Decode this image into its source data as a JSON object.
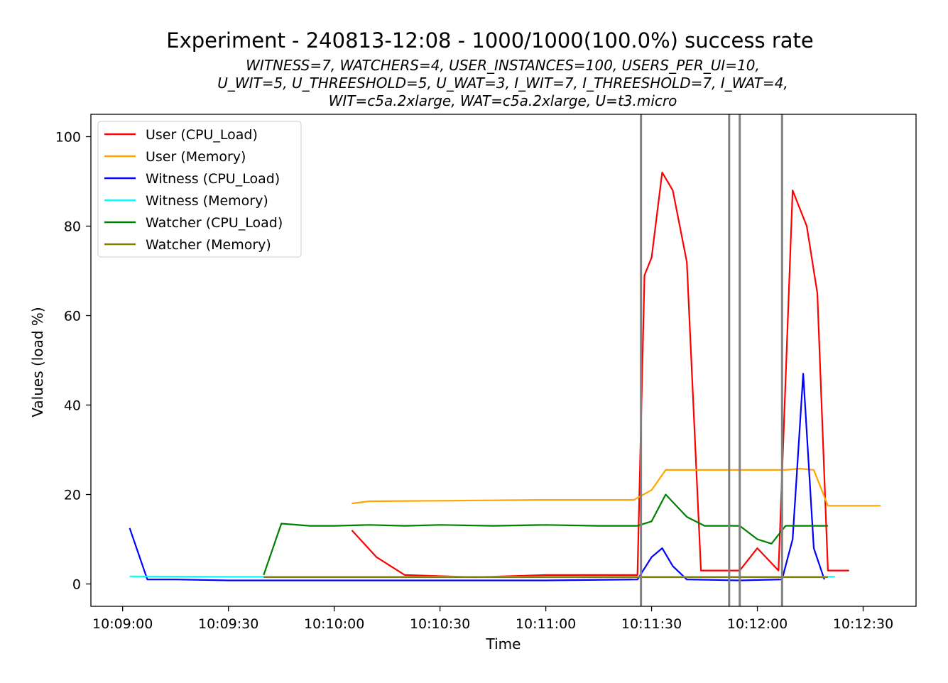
{
  "chart_data": {
    "type": "line",
    "title": "Experiment - 240813-12:08 - 1000/1000(100.0%) success rate",
    "subtitle_lines": [
      "WITNESS=7, WATCHERS=4, USER_INSTANCES=100, USERS_PER_UI=10,",
      "U_WIT=5, U_THREESHOLD=5, U_WAT=3, I_WIT=7, I_THREESHOLD=7, I_WAT=4,",
      "WIT=c5a.2xlarge, WAT=c5a.2xlarge, U=t3.micro"
    ],
    "xlabel": "Time",
    "ylabel": "Values (load %)",
    "x_ticks": [
      "10:09:00",
      "10:09:30",
      "10:10:00",
      "10:10:30",
      "10:11:00",
      "10:11:30",
      "10:12:00",
      "10:12:30"
    ],
    "y_ticks": [
      "0",
      "20",
      "40",
      "60",
      "80",
      "100"
    ],
    "xlim": [
      "10:08:51",
      "10:12:45"
    ],
    "ylim": [
      -5,
      105
    ],
    "grid": false,
    "legend_position": "top-left",
    "event_markers": [
      "10:11:27",
      "10:11:52",
      "10:11:55",
      "10:12:07"
    ],
    "series": [
      {
        "name": "User (CPU_Load)",
        "color": "#ff0000",
        "points": [
          [
            "10:10:05",
            12
          ],
          [
            "10:10:12",
            6
          ],
          [
            "10:10:20",
            2
          ],
          [
            "10:10:40",
            1.5
          ],
          [
            "10:11:00",
            2
          ],
          [
            "10:11:20",
            2
          ],
          [
            "10:11:26",
            2
          ],
          [
            "10:11:28",
            69
          ],
          [
            "10:11:30",
            73
          ],
          [
            "10:11:33",
            92
          ],
          [
            "10:11:36",
            88
          ],
          [
            "10:11:40",
            72
          ],
          [
            "10:11:44",
            3
          ],
          [
            "10:11:55",
            3
          ],
          [
            "10:12:00",
            8
          ],
          [
            "10:12:06",
            3
          ],
          [
            "10:12:10",
            88
          ],
          [
            "10:12:14",
            80
          ],
          [
            "10:12:17",
            65
          ],
          [
            "10:12:20",
            3
          ],
          [
            "10:12:26",
            3
          ]
        ]
      },
      {
        "name": "User (Memory)",
        "color": "#ffa500",
        "points": [
          [
            "10:10:05",
            18
          ],
          [
            "10:10:10",
            18.5
          ],
          [
            "10:10:30",
            18.6
          ],
          [
            "10:11:00",
            18.8
          ],
          [
            "10:11:25",
            18.8
          ],
          [
            "10:11:30",
            21
          ],
          [
            "10:11:34",
            25.5
          ],
          [
            "10:11:50",
            25.5
          ],
          [
            "10:12:08",
            25.5
          ],
          [
            "10:12:12",
            25.8
          ],
          [
            "10:12:16",
            25.5
          ],
          [
            "10:12:20",
            17.5
          ],
          [
            "10:12:35",
            17.5
          ]
        ]
      },
      {
        "name": "Witness (CPU_Load)",
        "color": "#0000ff",
        "points": [
          [
            "10:09:02",
            12.5
          ],
          [
            "10:09:07",
            1
          ],
          [
            "10:09:15",
            1
          ],
          [
            "10:09:30",
            0.8
          ],
          [
            "10:10:00",
            0.8
          ],
          [
            "10:10:30",
            0.8
          ],
          [
            "10:11:00",
            0.8
          ],
          [
            "10:11:26",
            1
          ],
          [
            "10:11:30",
            6
          ],
          [
            "10:11:33",
            8
          ],
          [
            "10:11:36",
            4
          ],
          [
            "10:11:40",
            1
          ],
          [
            "10:11:55",
            0.8
          ],
          [
            "10:12:07",
            1
          ],
          [
            "10:12:10",
            10
          ],
          [
            "10:12:13",
            47
          ],
          [
            "10:12:16",
            8
          ],
          [
            "10:12:19",
            1
          ]
        ]
      },
      {
        "name": "Witness (Memory)",
        "color": "#00ffff",
        "points": [
          [
            "10:09:02",
            1.7
          ],
          [
            "10:09:30",
            1.6
          ],
          [
            "10:10:00",
            1.6
          ],
          [
            "10:10:30",
            1.6
          ],
          [
            "10:11:00",
            1.6
          ],
          [
            "10:11:30",
            1.6
          ],
          [
            "10:12:00",
            1.6
          ],
          [
            "10:12:22",
            1.6
          ]
        ]
      },
      {
        "name": "Watcher (CPU_Load)",
        "color": "#008000",
        "points": [
          [
            "10:09:40",
            2
          ],
          [
            "10:09:45",
            13.5
          ],
          [
            "10:09:53",
            13
          ],
          [
            "10:10:00",
            13
          ],
          [
            "10:10:10",
            13.2
          ],
          [
            "10:10:20",
            13
          ],
          [
            "10:10:30",
            13.2
          ],
          [
            "10:10:45",
            13
          ],
          [
            "10:11:00",
            13.2
          ],
          [
            "10:11:15",
            13
          ],
          [
            "10:11:26",
            13
          ],
          [
            "10:11:30",
            14
          ],
          [
            "10:11:34",
            20
          ],
          [
            "10:11:40",
            15
          ],
          [
            "10:11:45",
            13
          ],
          [
            "10:11:55",
            13
          ],
          [
            "10:12:00",
            10
          ],
          [
            "10:12:04",
            9
          ],
          [
            "10:12:08",
            13
          ],
          [
            "10:12:14",
            13
          ],
          [
            "10:12:20",
            13
          ]
        ]
      },
      {
        "name": "Watcher (Memory)",
        "color": "#808000",
        "points": [
          [
            "10:09:40",
            1.5
          ],
          [
            "10:10:00",
            1.5
          ],
          [
            "10:10:30",
            1.5
          ],
          [
            "10:11:00",
            1.5
          ],
          [
            "10:11:30",
            1.5
          ],
          [
            "10:12:00",
            1.5
          ],
          [
            "10:12:20",
            1.5
          ]
        ]
      }
    ]
  }
}
